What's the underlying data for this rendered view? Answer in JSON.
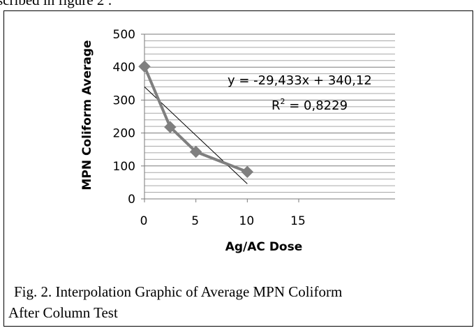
{
  "page": {
    "top_text": "scribed in figure 2 :"
  },
  "figure": {
    "caption_line1": "Fig. 2. Interpolation Graphic of Average MPN Coliform",
    "caption_line2": "After Column Test"
  },
  "chart_data": {
    "type": "scatter",
    "title": "",
    "xlabel": "Ag/AC Dose",
    "ylabel": "MPN Coliform Average",
    "xlim": [
      0,
      15
    ],
    "ylim": [
      0,
      500
    ],
    "x_ticks": [
      "0",
      "5",
      "10",
      "15"
    ],
    "y_ticks": [
      "0",
      "100",
      "200",
      "300",
      "400",
      "500"
    ],
    "minor_grid_step": 20,
    "major_grid_step": 100,
    "series": [
      {
        "x": [
          0,
          2.5,
          5,
          10
        ],
        "y": [
          402,
          218,
          143,
          82
        ],
        "color": "#7f7f7f",
        "marker": "diamond",
        "connected": true
      }
    ],
    "trendline": {
      "slope": -29.433,
      "intercept": 340.12,
      "x_range": [
        0,
        10
      ],
      "color": "#000000",
      "equation": "y = -29,433x + 340,12",
      "r_squared_prefix": "R",
      "r_squared_sup": "2",
      "r_squared_value": " = 0,8229"
    },
    "legend": "none",
    "grid": true
  }
}
